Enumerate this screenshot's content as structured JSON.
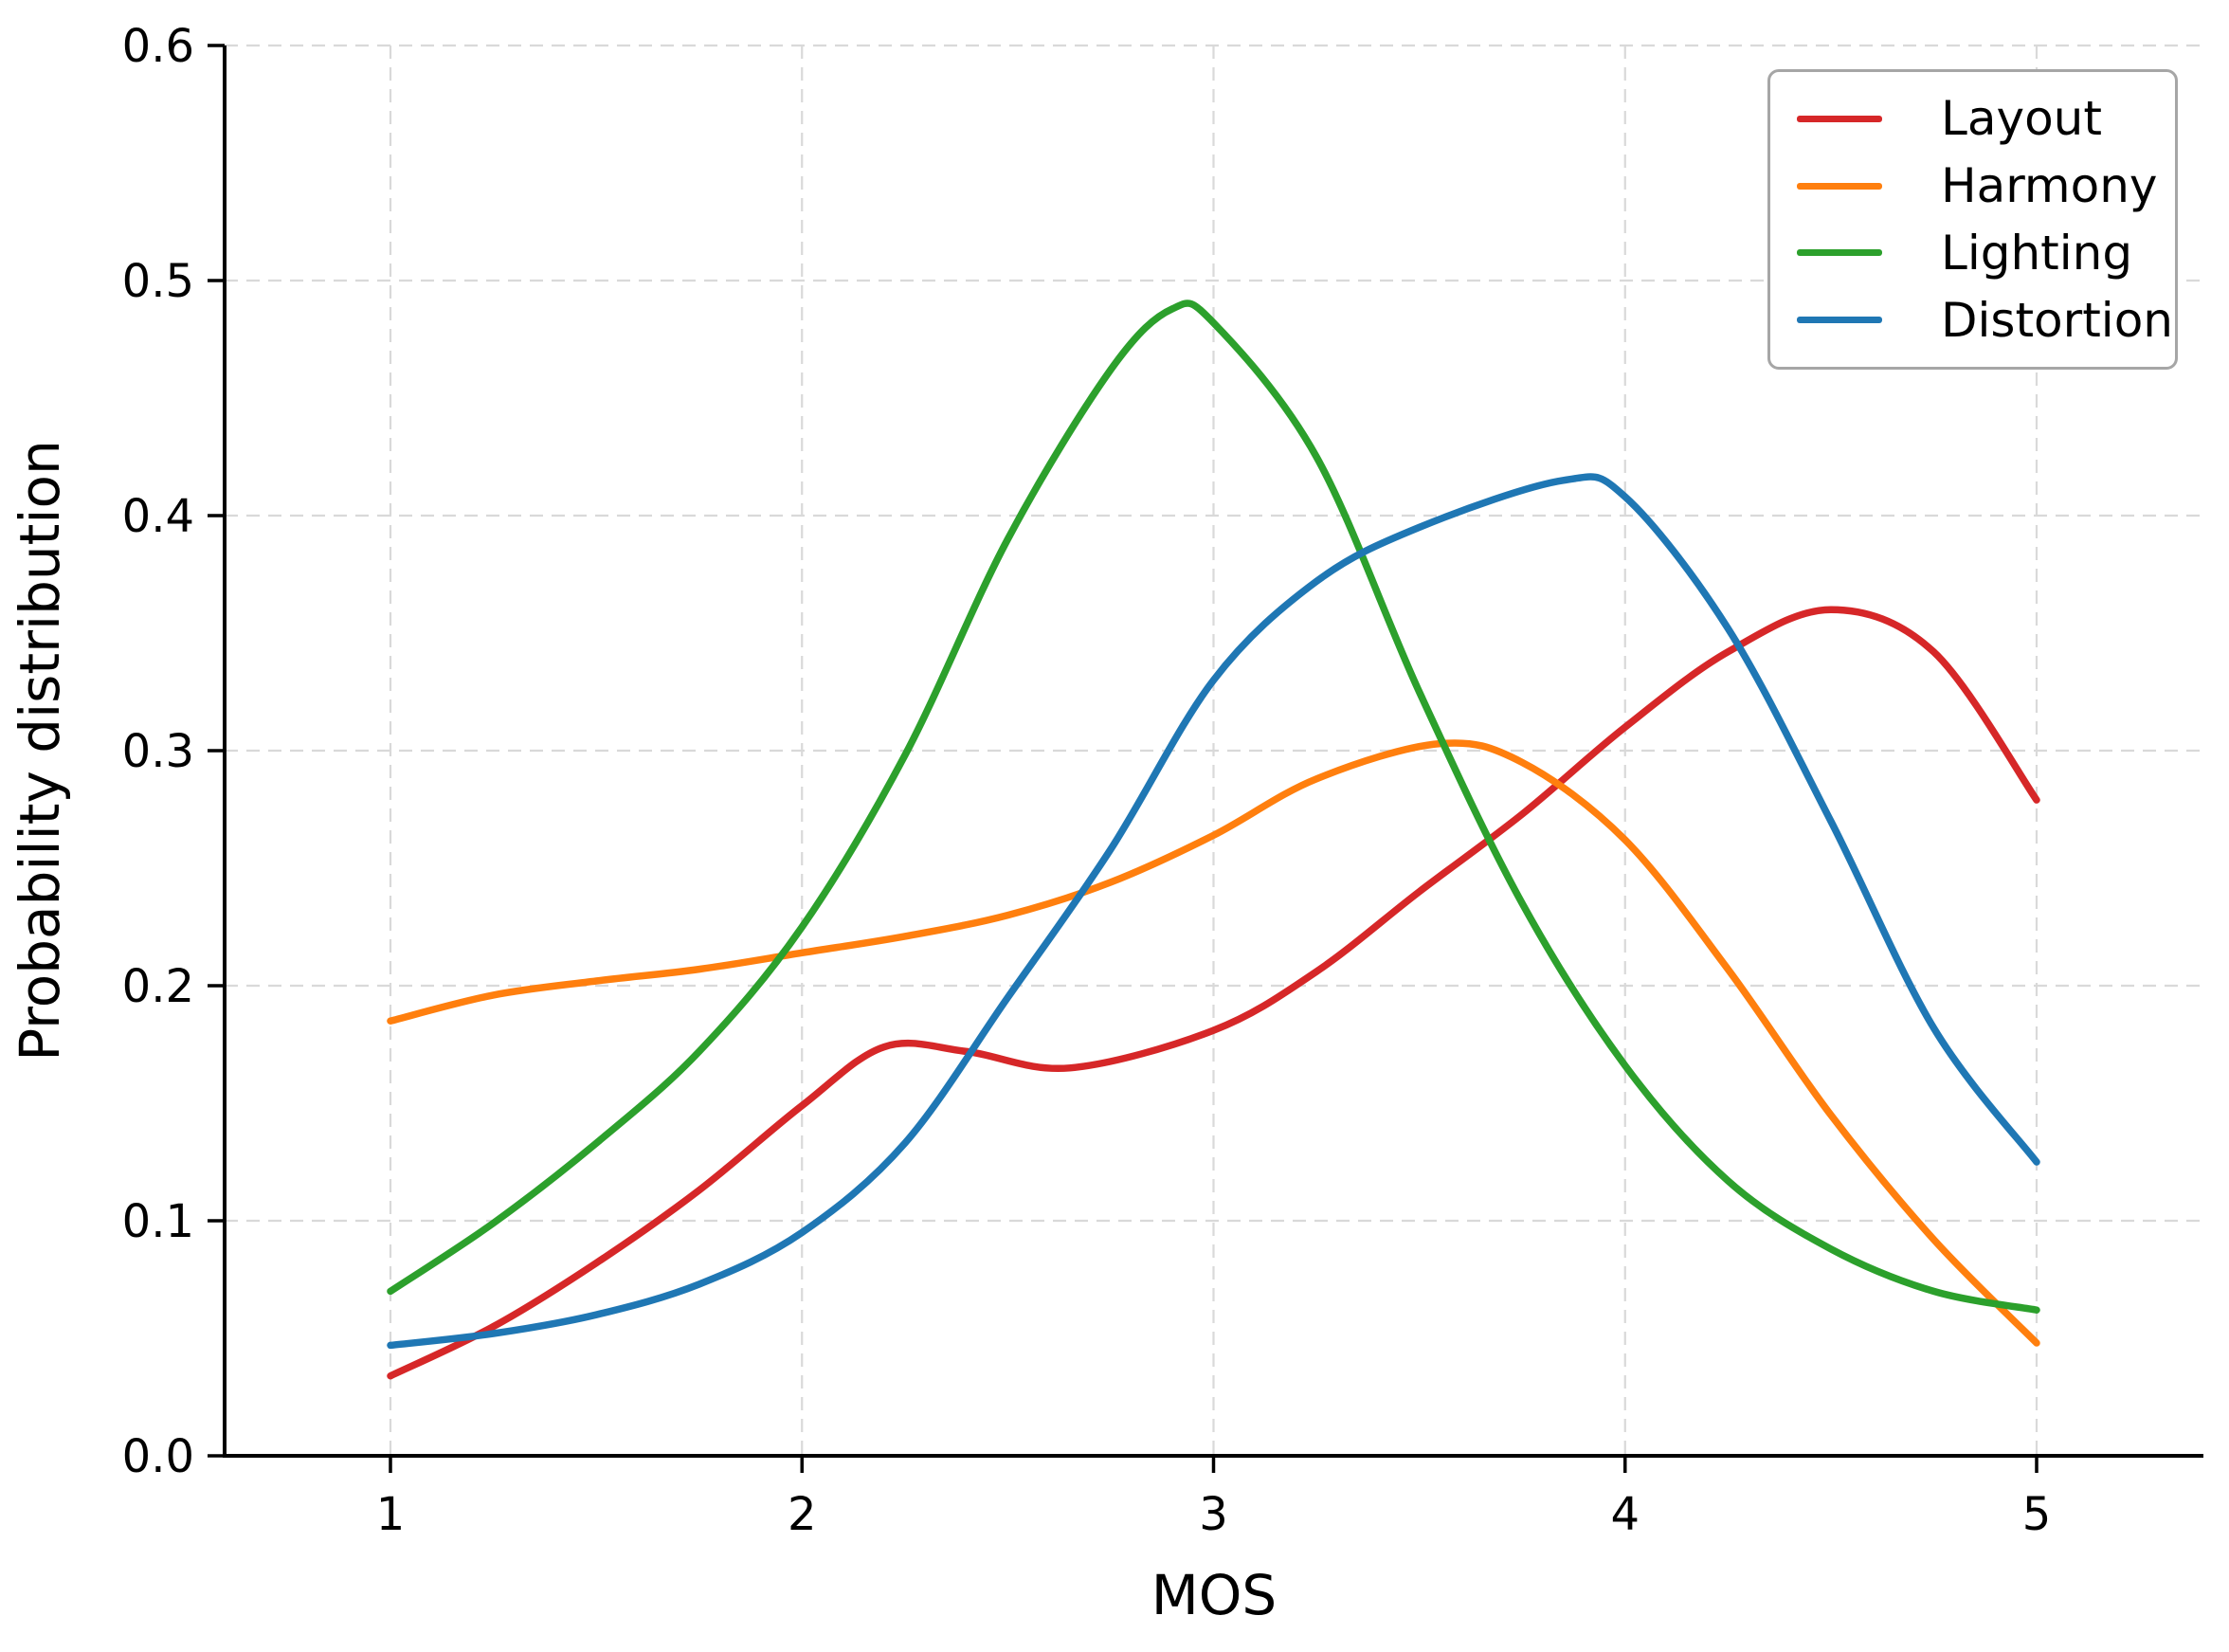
{
  "chart_data": {
    "type": "line",
    "title": "",
    "xlabel": "MOS",
    "ylabel": "Probability distribution",
    "xlim": [
      0.6,
      5.4
    ],
    "ylim": [
      0.0,
      0.6
    ],
    "x_ticks": [
      "1",
      "2",
      "3",
      "4",
      "5"
    ],
    "y_ticks": [
      "0.0",
      "0.1",
      "0.2",
      "0.3",
      "0.4",
      "0.5",
      "0.6"
    ],
    "grid": true,
    "grid_style": "dashed",
    "legend_position": "upper right",
    "series": [
      {
        "name": "Layout",
        "color": "#d62728",
        "points": [
          [
            1,
            0.034
          ],
          [
            1.25,
            0.055
          ],
          [
            1.5,
            0.082
          ],
          [
            1.75,
            0.113
          ],
          [
            2,
            0.149
          ],
          [
            2.2,
            0.174
          ],
          [
            2.4,
            0.172
          ],
          [
            2.65,
            0.165
          ],
          [
            3,
            0.181
          ],
          [
            3.25,
            0.206
          ],
          [
            3.5,
            0.24
          ],
          [
            3.75,
            0.273
          ],
          [
            4,
            0.31
          ],
          [
            4.25,
            0.342
          ],
          [
            4.5,
            0.36
          ],
          [
            4.75,
            0.342
          ],
          [
            5,
            0.279
          ]
        ]
      },
      {
        "name": "Harmony",
        "color": "#ff7f0e",
        "points": [
          [
            1,
            0.185
          ],
          [
            1.25,
            0.196
          ],
          [
            1.5,
            0.202
          ],
          [
            1.75,
            0.207
          ],
          [
            2,
            0.214
          ],
          [
            2.25,
            0.221
          ],
          [
            2.5,
            0.23
          ],
          [
            2.75,
            0.244
          ],
          [
            3,
            0.264
          ],
          [
            3.25,
            0.288
          ],
          [
            3.55,
            0.303
          ],
          [
            3.75,
            0.295
          ],
          [
            4,
            0.262
          ],
          [
            4.25,
            0.207
          ],
          [
            4.5,
            0.145
          ],
          [
            4.75,
            0.092
          ],
          [
            5,
            0.048
          ]
        ]
      },
      {
        "name": "Lighting",
        "color": "#2ca02c",
        "points": [
          [
            1,
            0.07
          ],
          [
            1.25,
            0.099
          ],
          [
            1.5,
            0.133
          ],
          [
            1.75,
            0.172
          ],
          [
            2,
            0.225
          ],
          [
            2.25,
            0.298
          ],
          [
            2.5,
            0.39
          ],
          [
            2.75,
            0.462
          ],
          [
            2.9,
            0.488
          ],
          [
            3,
            0.482
          ],
          [
            3.25,
            0.425
          ],
          [
            3.5,
            0.325
          ],
          [
            3.75,
            0.235
          ],
          [
            4,
            0.166
          ],
          [
            4.25,
            0.117
          ],
          [
            4.5,
            0.088
          ],
          [
            4.75,
            0.07
          ],
          [
            5,
            0.062
          ]
        ]
      },
      {
        "name": "Distortion",
        "color": "#1f77b4",
        "points": [
          [
            1,
            0.047
          ],
          [
            1.25,
            0.052
          ],
          [
            1.5,
            0.06
          ],
          [
            1.75,
            0.073
          ],
          [
            2,
            0.095
          ],
          [
            2.25,
            0.133
          ],
          [
            2.5,
            0.195
          ],
          [
            2.75,
            0.258
          ],
          [
            3,
            0.33
          ],
          [
            3.25,
            0.372
          ],
          [
            3.5,
            0.395
          ],
          [
            3.85,
            0.415
          ],
          [
            4,
            0.408
          ],
          [
            4.25,
            0.352
          ],
          [
            4.5,
            0.27
          ],
          [
            4.75,
            0.182
          ],
          [
            5,
            0.125
          ]
        ]
      }
    ],
    "style": {
      "line_width": 7.5,
      "grid_color": "#d9d9d9",
      "spine_color": "#000000",
      "text_color": "#000000",
      "background": "#ffffff"
    }
  }
}
